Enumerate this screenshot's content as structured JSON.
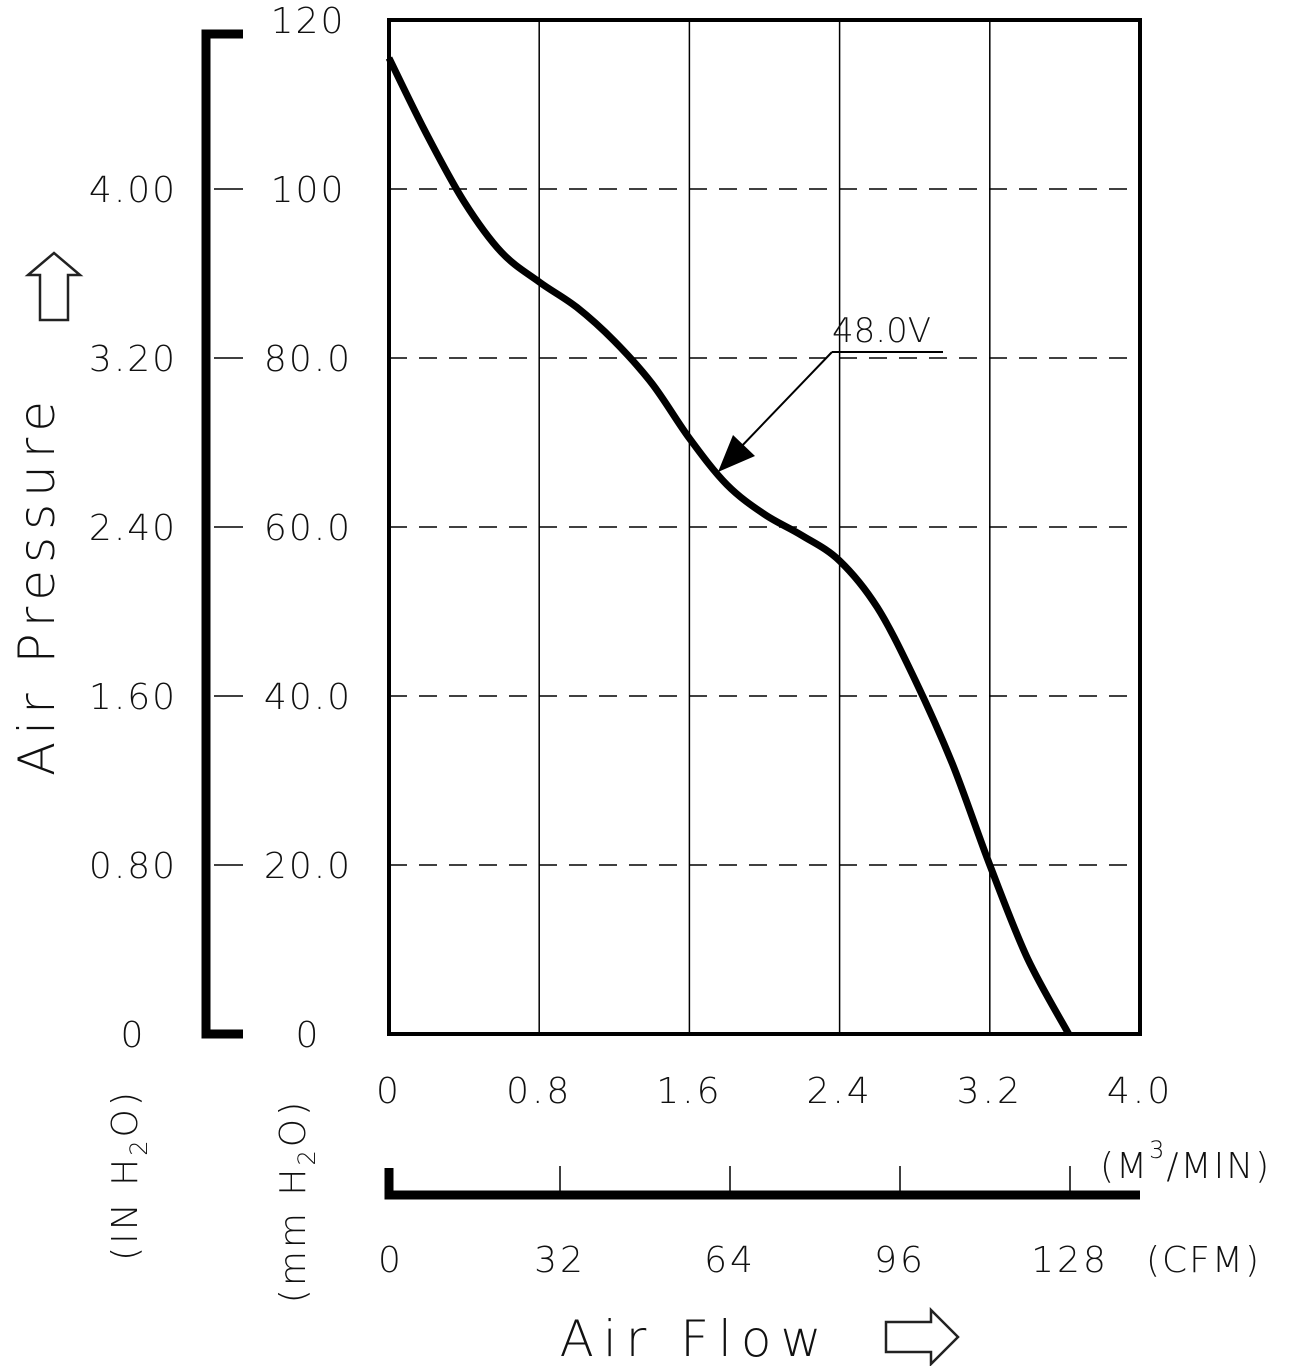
{
  "chart_data": {
    "type": "line",
    "title": "",
    "ylabel": "Air Pressure",
    "xlabel": "Air Flow",
    "y_primary": {
      "unit": "mm H2O",
      "unit_parts": [
        "(mm H",
        "2",
        "O)"
      ],
      "ticks": [
        "0",
        "20.0",
        "40.0",
        "60.0",
        "80.0",
        "100",
        "120"
      ],
      "ylim": [
        0,
        120
      ]
    },
    "y_secondary": {
      "unit": "IN H2O",
      "unit_parts": [
        "(IN H",
        "2",
        "O)"
      ],
      "ticks": [
        "0",
        "0.80",
        "1.60",
        "2.40",
        "3.20",
        "4.00"
      ]
    },
    "x_primary": {
      "unit": "M3/MIN",
      "unit_parts": [
        "(M",
        "3",
        "/MIN)"
      ],
      "ticks": [
        "0",
        "0.8",
        "1.6",
        "2.4",
        "3.2",
        "4.0"
      ],
      "xlim": [
        0,
        4.0
      ]
    },
    "x_secondary": {
      "unit": "CFM",
      "unit_text": "(CFM)",
      "ticks": [
        "0",
        "32",
        "64",
        "96",
        "128"
      ]
    },
    "grid": true,
    "series": [
      {
        "name": "48.0V",
        "x": [
          0,
          0.2,
          0.4,
          0.6,
          0.8,
          1.0,
          1.2,
          1.4,
          1.6,
          1.8,
          2.0,
          2.2,
          2.4,
          2.6,
          2.8,
          3.0,
          3.2,
          3.4,
          3.62
        ],
        "y": [
          115.5,
          106.5,
          98.5,
          92.5,
          89,
          86,
          82,
          77,
          70.5,
          65,
          61.5,
          59,
          56,
          50.5,
          42,
          32,
          20,
          9,
          0
        ]
      }
    ]
  }
}
